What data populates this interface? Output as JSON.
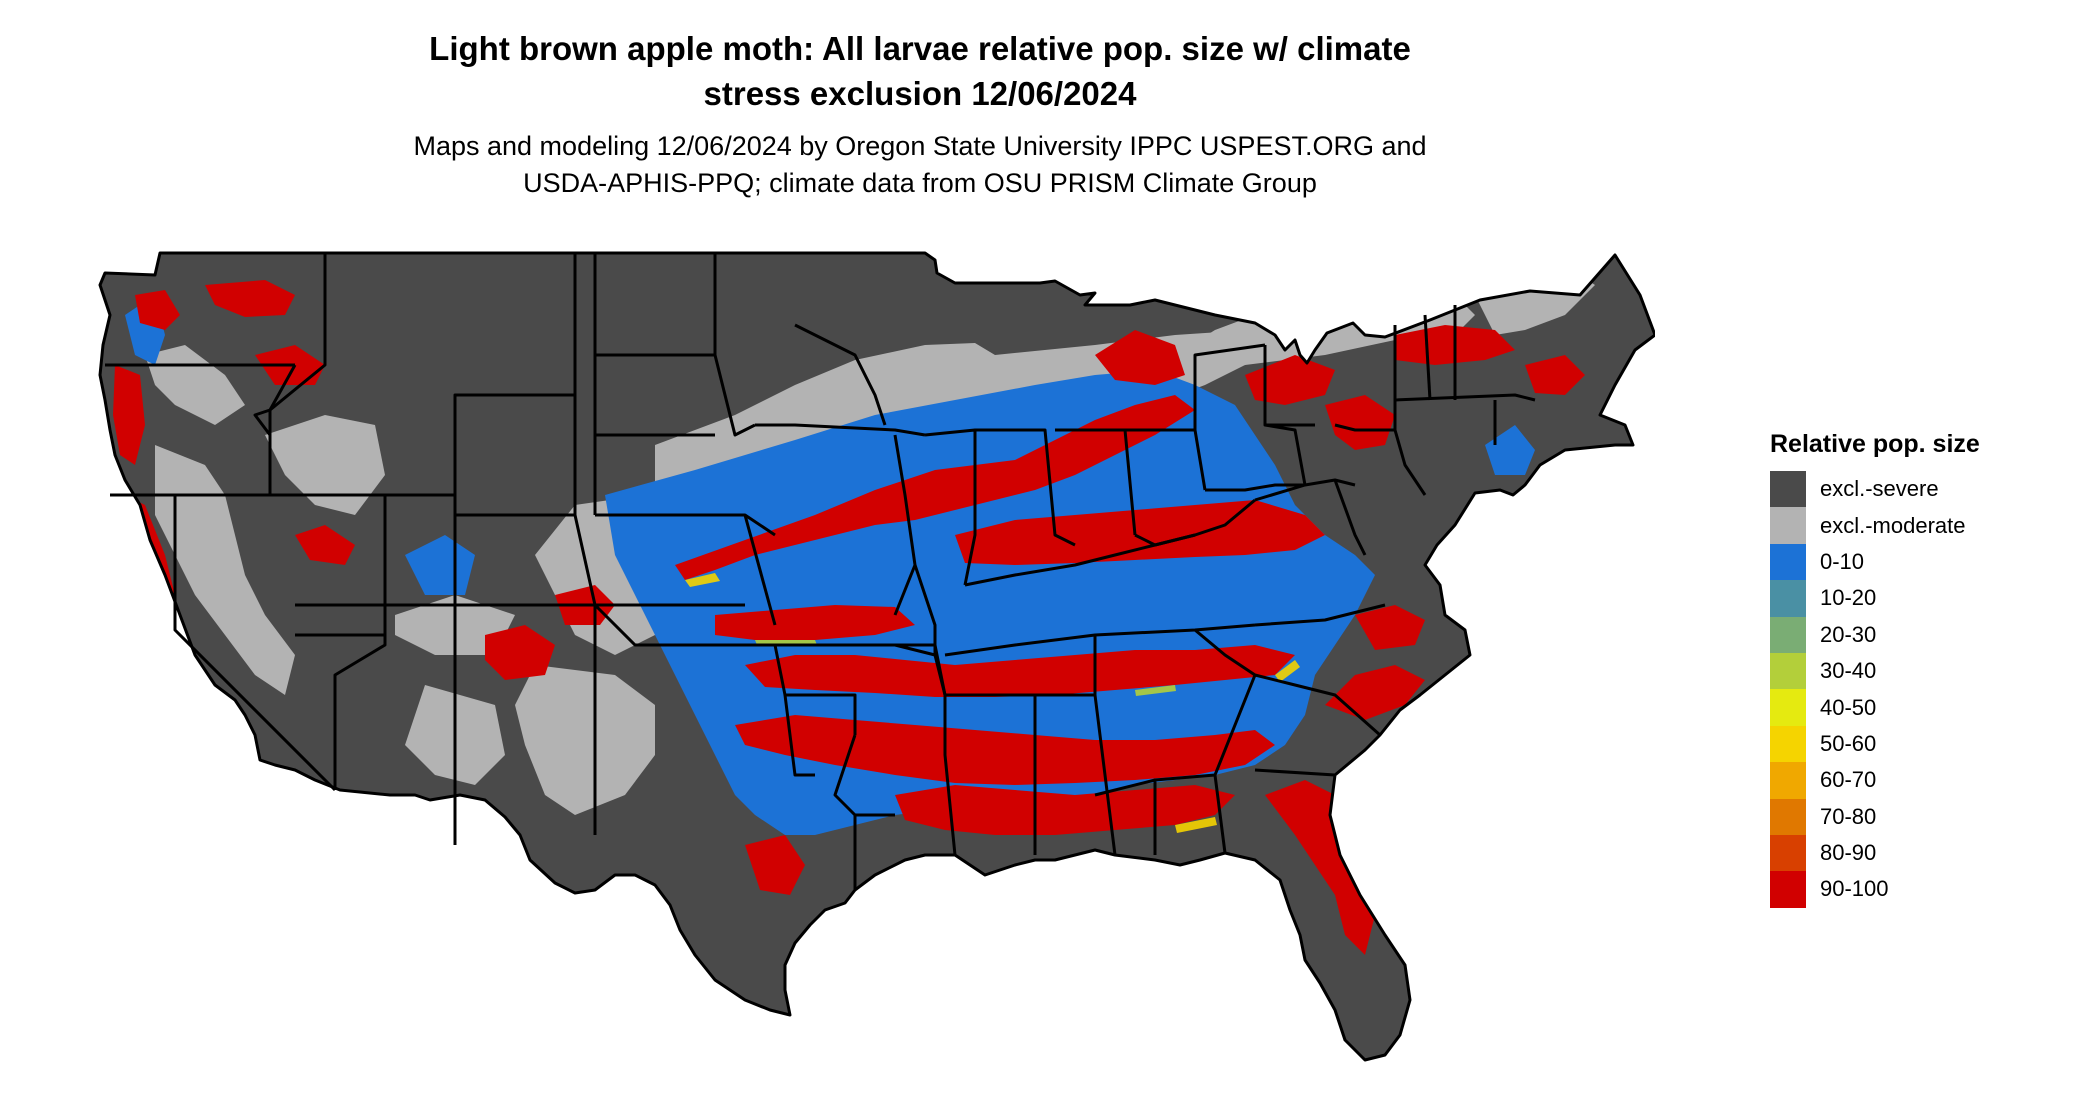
{
  "title": {
    "line1": "Light brown apple moth: All larvae relative pop. size w/ climate",
    "line2": "stress exclusion 12/06/2024"
  },
  "subtitle": {
    "line1": "Maps and modeling 12/06/2024 by Oregon State University IPPC USPEST.ORG and",
    "line2": "USDA-APHIS-PPQ; climate data from OSU PRISM Climate Group"
  },
  "legend": {
    "title": "Relative pop. size",
    "items": [
      {
        "label": "excl.-severe",
        "color": "#4a4a4a"
      },
      {
        "label": "excl.-moderate",
        "color": "#b3b3b3"
      },
      {
        "label": "0-10",
        "color": "#1c72d6"
      },
      {
        "label": "10-20",
        "color": "#4a90a4"
      },
      {
        "label": "20-30",
        "color": "#7aad74"
      },
      {
        "label": "30-40",
        "color": "#b3cf3a"
      },
      {
        "label": "40-50",
        "color": "#e5ea10"
      },
      {
        "label": "50-60",
        "color": "#f5d400"
      },
      {
        "label": "60-70",
        "color": "#f0a800"
      },
      {
        "label": "70-80",
        "color": "#e07800"
      },
      {
        "label": "80-90",
        "color": "#d84000"
      },
      {
        "label": "90-100",
        "color": "#d10000"
      }
    ]
  },
  "map": {
    "border_color": "#000000"
  }
}
